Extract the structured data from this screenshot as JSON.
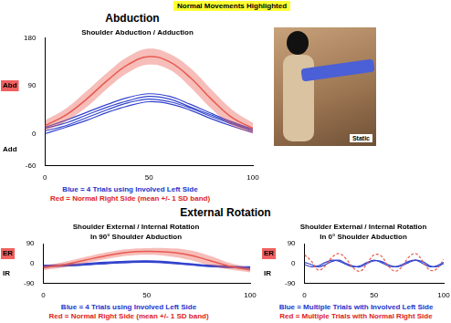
{
  "banner": "Normal Movements Highlighted",
  "heading_1": "Abduction",
  "photo_label": "Static",
  "heading_2": "External Rotation",
  "chart_data": [
    {
      "type": "line",
      "title": "Shoulder Abduction / Adduction",
      "x": [
        0,
        10,
        20,
        30,
        40,
        50,
        60,
        70,
        80,
        90,
        100
      ],
      "series": [
        {
          "color": "#e85a50",
          "values": [
            15,
            35,
            65,
            100,
            130,
            145,
            135,
            105,
            65,
            30,
            10
          ],
          "sd": [
            10,
            12,
            15,
            15,
            15,
            15,
            15,
            18,
            18,
            15,
            10
          ]
        },
        {
          "color": "#3344cc",
          "values": [
            10,
            20,
            35,
            50,
            62,
            70,
            65,
            50,
            35,
            20,
            5
          ]
        },
        {
          "color": "#3344cc",
          "values": [
            5,
            15,
            30,
            45,
            58,
            65,
            60,
            48,
            32,
            18,
            5
          ]
        },
        {
          "color": "#3344cc",
          "values": [
            12,
            25,
            40,
            55,
            68,
            75,
            70,
            55,
            38,
            22,
            8
          ]
        },
        {
          "color": "#3344cc",
          "values": [
            0,
            12,
            25,
            40,
            52,
            60,
            56,
            44,
            28,
            14,
            2
          ]
        }
      ],
      "xlim": [
        0,
        100
      ],
      "xticks": [
        0,
        50,
        100
      ],
      "ylim": [
        -60,
        180
      ],
      "yticks": [
        -60,
        0,
        90,
        180
      ],
      "grid": false,
      "annotations": [
        {
          "text": "Abd",
          "y": 90,
          "color": "#f06060"
        },
        {
          "text": "Add",
          "y": -30
        }
      ],
      "caption": [
        {
          "text": "Blue = 4 Trials using Involved Left Side",
          "color": "#2233cc"
        },
        {
          "text": "Red = Normal Right Side (mean +/- 1 SD band)",
          "color": "#dd2222"
        }
      ]
    },
    {
      "type": "line",
      "title": "Shoulder External / Internal Rotation",
      "subtitle": "In 90° Shoulder Abduction",
      "x": [
        0,
        10,
        20,
        30,
        40,
        50,
        60,
        70,
        80,
        90,
        100
      ],
      "series": [
        {
          "color": "#e85a50",
          "values": [
            -20,
            -5,
            15,
            35,
            50,
            55,
            52,
            40,
            15,
            -12,
            -30
          ],
          "sd": [
            10,
            12,
            14,
            15,
            15,
            15,
            18,
            22,
            22,
            15,
            10
          ]
        },
        {
          "color": "#3344cc",
          "values": [
            -10,
            -8,
            -3,
            3,
            8,
            10,
            6,
            -2,
            -10,
            -15,
            -18
          ]
        },
        {
          "color": "#3344cc",
          "values": [
            -12,
            -10,
            -5,
            1,
            5,
            8,
            4,
            -4,
            -12,
            -17,
            -20
          ]
        },
        {
          "color": "#3344cc",
          "values": [
            -8,
            -5,
            0,
            6,
            10,
            12,
            8,
            0,
            -8,
            -13,
            -15
          ]
        },
        {
          "color": "#3344cc",
          "values": [
            -14,
            -12,
            -7,
            -1,
            4,
            6,
            2,
            -6,
            -14,
            -18,
            -22
          ]
        }
      ],
      "xlim": [
        0,
        100
      ],
      "xticks": [
        0,
        50,
        100
      ],
      "ylim": [
        -90,
        90
      ],
      "yticks": [
        -90,
        0,
        90
      ],
      "grid": false,
      "annotations": [
        {
          "text": "ER",
          "y": 45,
          "color": "#f06060"
        },
        {
          "text": "IR",
          "y": -45
        }
      ],
      "caption": [
        {
          "text": "Blue = 4 Trials using Involved Left Side",
          "color": "#2233cc"
        },
        {
          "text": "Red = Normal Right Side (mean +/- 1 SD band)",
          "color": "#dd2222"
        }
      ]
    },
    {
      "type": "line",
      "title": "Shoulder External / Internal Rotation",
      "subtitle": "In 0° Shoulder Abduction",
      "x": [
        0,
        5,
        10,
        15,
        20,
        25,
        30,
        35,
        40,
        45,
        50,
        55,
        60,
        65,
        70,
        75,
        80,
        85,
        90,
        95,
        100
      ],
      "series": [
        {
          "color": "#e85a50",
          "line_style": "dashed",
          "values": [
            40,
            10,
            -30,
            -10,
            30,
            45,
            20,
            -20,
            -35,
            0,
            40,
            35,
            -10,
            -35,
            -15,
            30,
            45,
            10,
            -30,
            -25,
            20
          ]
        },
        {
          "color": "#3344cc",
          "values": [
            -5,
            -15,
            -10,
            5,
            15,
            10,
            -5,
            -15,
            -10,
            5,
            15,
            5,
            -10,
            -15,
            -5,
            10,
            15,
            0,
            -15,
            -10,
            5
          ]
        },
        {
          "color": "#3344cc",
          "values": [
            5,
            -5,
            -15,
            -5,
            10,
            15,
            0,
            -12,
            -15,
            0,
            12,
            10,
            -5,
            -15,
            -10,
            5,
            15,
            8,
            -10,
            -15,
            0
          ]
        }
      ],
      "xlim": [
        0,
        100
      ],
      "xticks": [
        0,
        50,
        100
      ],
      "ylim": [
        -90,
        90
      ],
      "yticks": [
        -90,
        0,
        90
      ],
      "grid": false,
      "annotations": [
        {
          "text": "ER",
          "y": 45,
          "color": "#f06060"
        },
        {
          "text": "IR",
          "y": -45
        }
      ],
      "caption": [
        {
          "text": "Blue = Multiple Trials with Involved Left Side",
          "color": "#2233cc"
        },
        {
          "text": "Red = Multiple Trials with Normal Right Side",
          "color": "#dd2222"
        }
      ]
    }
  ]
}
